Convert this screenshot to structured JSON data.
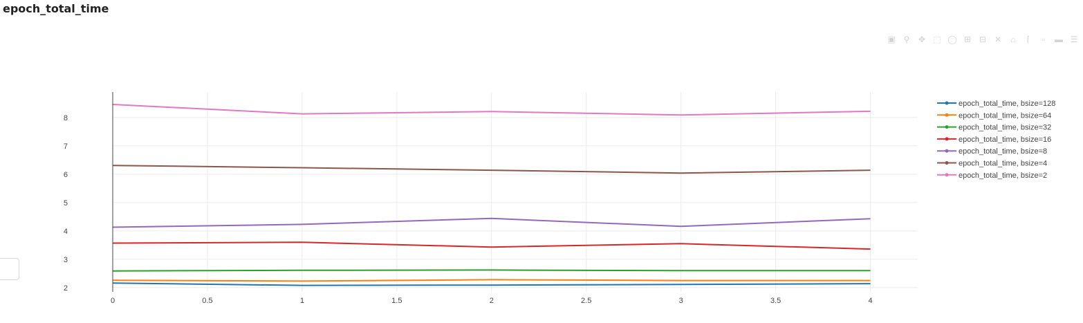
{
  "page": {
    "title": "epoch_total_time"
  },
  "toolbar": {
    "icons": [
      "camera-icon",
      "zoom-icon",
      "pan-icon",
      "box-select-icon",
      "lasso-icon",
      "zoom-in-icon",
      "zoom-out-icon",
      "autoscale-icon",
      "reset-axes-icon",
      "spike-lines-icon",
      "hover-closest-icon",
      "hover-compare-icon",
      "logo-icon"
    ]
  },
  "chart_data": {
    "type": "line",
    "title": "",
    "xlabel": "",
    "ylabel": "",
    "xlim": [
      0,
      4.25
    ],
    "ylim": [
      1.85,
      8.9
    ],
    "xticks": [
      0,
      0.5,
      1,
      1.5,
      2,
      2.5,
      3,
      3.5,
      4
    ],
    "xtick_labels": [
      "0",
      "0.5",
      "1",
      "1.5",
      "2",
      "2.5",
      "3",
      "3.5",
      "4"
    ],
    "yticks": [
      2,
      3,
      4,
      5,
      6,
      7,
      8
    ],
    "ytick_labels": [
      "2",
      "3",
      "4",
      "5",
      "6",
      "7",
      "8"
    ],
    "grid": true,
    "legend_position": "top-right",
    "x": [
      0,
      1,
      2,
      3,
      4
    ],
    "series": [
      {
        "name": "epoch_total_time, bsize=128",
        "color": "#1f77b4",
        "values": [
          2.16,
          2.08,
          2.09,
          2.11,
          2.14
        ]
      },
      {
        "name": "epoch_total_time, bsize=64",
        "color": "#ff7f0e",
        "values": [
          2.26,
          2.23,
          2.28,
          2.25,
          2.25
        ]
      },
      {
        "name": "epoch_total_time, bsize=32",
        "color": "#2ca02c",
        "values": [
          2.59,
          2.61,
          2.62,
          2.6,
          2.6
        ]
      },
      {
        "name": "epoch_total_time, bsize=16",
        "color": "#d62728",
        "values": [
          3.57,
          3.6,
          3.43,
          3.55,
          3.36
        ]
      },
      {
        "name": "epoch_total_time, bsize=8",
        "color": "#9467bd",
        "values": [
          4.13,
          4.23,
          4.44,
          4.16,
          4.43
        ]
      },
      {
        "name": "epoch_total_time, bsize=4",
        "color": "#8c564b",
        "values": [
          6.31,
          6.23,
          6.14,
          6.04,
          6.14
        ]
      },
      {
        "name": "epoch_total_time, bsize=2",
        "color": "#e377c2",
        "values": [
          8.46,
          8.13,
          8.21,
          8.09,
          8.22
        ]
      }
    ]
  }
}
